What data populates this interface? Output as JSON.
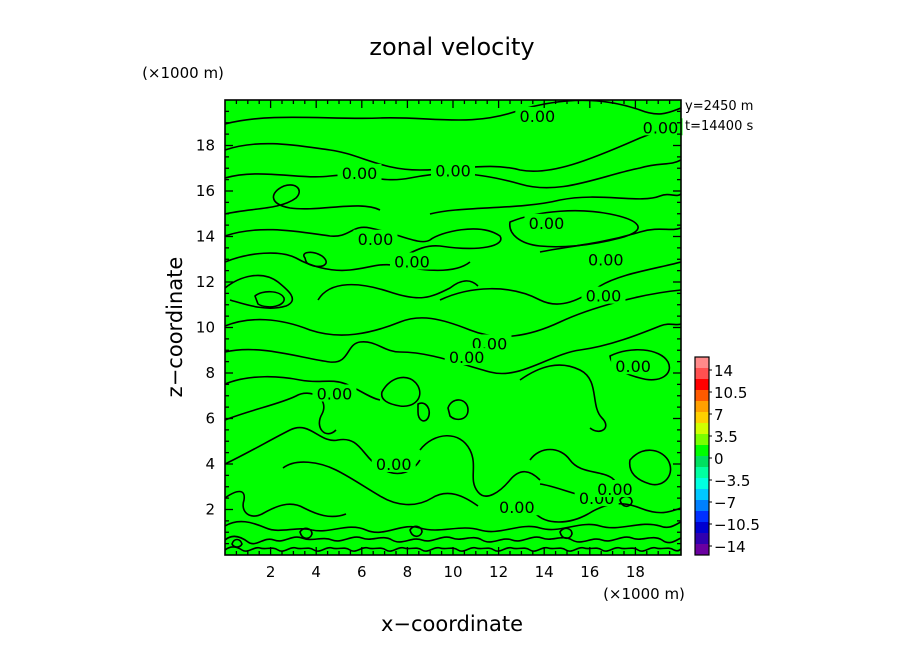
{
  "chart_data": {
    "type": "contour",
    "title": "zonal velocity",
    "xlabel": "x−coordinate",
    "ylabel": "z−coordinate",
    "x_unit_label": "(×1000 m)",
    "y_unit_label": "(×1000 m)",
    "xlim": [
      0,
      20
    ],
    "ylim": [
      0,
      20
    ],
    "x_ticks": [
      2,
      4,
      6,
      8,
      10,
      12,
      14,
      16,
      18
    ],
    "y_ticks": [
      2,
      4,
      6,
      8,
      10,
      12,
      14,
      16,
      18
    ],
    "x_tick_labels": [
      "2",
      "4",
      "6",
      "8",
      "10",
      "12",
      "14",
      "16",
      "18"
    ],
    "y_tick_labels": [
      "2",
      "4",
      "6",
      "8",
      "10",
      "12",
      "14",
      "16",
      "18"
    ],
    "info_lines": [
      "y=2450 m",
      "t=14400 s"
    ],
    "contour_level": 0.0,
    "contour_label": "0.00",
    "field_color": "#00ff00",
    "contour_label_positions": [
      {
        "x": 13.7,
        "z": 19.3
      },
      {
        "x": 19.1,
        "z": 18.8
      },
      {
        "x": 5.9,
        "z": 16.8
      },
      {
        "x": 10.0,
        "z": 16.9
      },
      {
        "x": 14.1,
        "z": 14.6
      },
      {
        "x": 6.6,
        "z": 13.9
      },
      {
        "x": 8.2,
        "z": 12.9
      },
      {
        "x": 16.7,
        "z": 13.0
      },
      {
        "x": 16.6,
        "z": 11.4
      },
      {
        "x": 11.6,
        "z": 9.3
      },
      {
        "x": 10.6,
        "z": 8.7
      },
      {
        "x": 17.9,
        "z": 8.3
      },
      {
        "x": 4.8,
        "z": 7.1
      },
      {
        "x": 7.4,
        "z": 4.0
      },
      {
        "x": 12.8,
        "z": 2.1
      },
      {
        "x": 16.3,
        "z": 2.5
      },
      {
        "x": 17.1,
        "z": 2.9
      }
    ],
    "colorbar": {
      "labels": [
        "14",
        "10.5",
        "7",
        "3.5",
        "0",
        "−3.5",
        "−7",
        "−10.5",
        "−14"
      ],
      "colors": [
        "#ff8a8a",
        "#ff5050",
        "#ff0000",
        "#ff5a00",
        "#ffa000",
        "#ffd000",
        "#d2ff00",
        "#7aff00",
        "#00ff00",
        "#00e060",
        "#00ffa0",
        "#00ffe0",
        "#00c8ff",
        "#0080ff",
        "#0030ff",
        "#0000d0",
        "#3000b0",
        "#6a00a0"
      ]
    }
  }
}
